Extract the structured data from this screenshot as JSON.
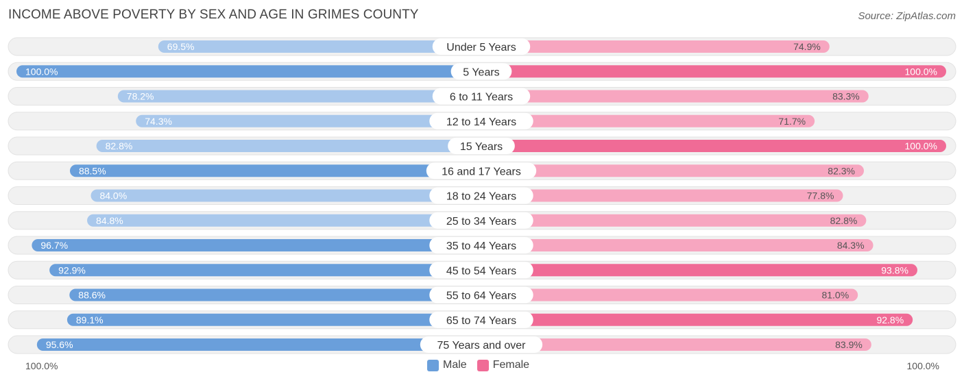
{
  "header": {
    "title": "INCOME ABOVE POVERTY BY SEX AND AGE IN GRIMES COUNTY",
    "source": "Source: ZipAtlas.com"
  },
  "axis": {
    "left_label": "100.0%",
    "right_label": "100.0%"
  },
  "legend": {
    "male_label": "Male",
    "female_label": "Female"
  },
  "colors": {
    "male_strong": "#6a9fdb",
    "male_light": "#a9c8ec",
    "female_strong": "#f06b96",
    "female_light": "#f7a6c0",
    "track": "#f1f1f1"
  },
  "chart_data": {
    "type": "bar",
    "title": "INCOME ABOVE POVERTY BY SEX AND AGE IN GRIMES COUNTY",
    "categories": [
      "Under 5 Years",
      "5 Years",
      "6 to 11 Years",
      "12 to 14 Years",
      "15 Years",
      "16 and 17 Years",
      "18 to 24 Years",
      "25 to 34 Years",
      "35 to 44 Years",
      "45 to 54 Years",
      "55 to 64 Years",
      "65 to 74 Years",
      "75 Years and over"
    ],
    "series": [
      {
        "name": "Male",
        "values": [
          69.5,
          100.0,
          78.2,
          74.3,
          82.8,
          88.5,
          84.0,
          84.8,
          96.7,
          92.9,
          88.6,
          89.1,
          95.6
        ],
        "labels": [
          "69.5%",
          "100.0%",
          "78.2%",
          "74.3%",
          "82.8%",
          "88.5%",
          "84.0%",
          "84.8%",
          "96.7%",
          "92.9%",
          "88.6%",
          "89.1%",
          "95.6%"
        ]
      },
      {
        "name": "Female",
        "values": [
          74.9,
          100.0,
          83.3,
          71.7,
          100.0,
          82.3,
          77.8,
          82.8,
          84.3,
          93.8,
          81.0,
          92.8,
          83.9
        ],
        "labels": [
          "74.9%",
          "100.0%",
          "83.3%",
          "71.7%",
          "100.0%",
          "82.3%",
          "77.8%",
          "82.8%",
          "84.3%",
          "93.8%",
          "81.0%",
          "92.8%",
          "83.9%"
        ]
      }
    ],
    "xlim": [
      0,
      100
    ],
    "legend_position": "bottom-center"
  }
}
